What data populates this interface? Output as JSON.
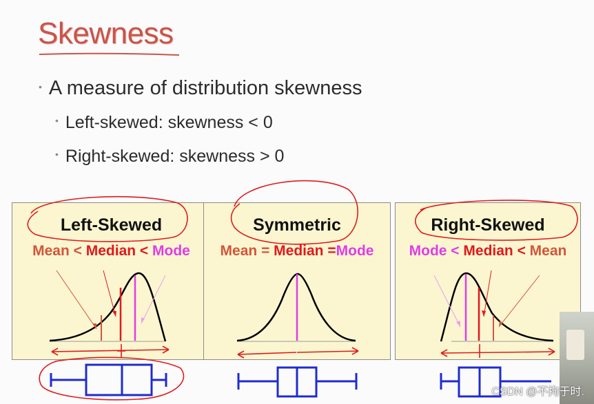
{
  "slide": {
    "title": "Skewness",
    "bullets": [
      "A measure of distribution skewness",
      "Left-skewed: skewness < 0",
      "Right-skewed: skewness > 0"
    ],
    "panels": [
      {
        "title": "Left-Skewed",
        "order": {
          "a": "Mean",
          "s1": " < ",
          "b": "Median",
          "s2": " < ",
          "c": "Mode"
        }
      },
      {
        "title": "Symmetric",
        "order": {
          "a": "Mean",
          "s1": " = ",
          "b": "Median",
          "s2": " =",
          "c": "Mode"
        }
      },
      {
        "title": "Right-Skewed",
        "order": {
          "a": "Mode",
          "s1": " < ",
          "b": "Median",
          "s2": " < ",
          "c": "Mean"
        }
      }
    ]
  },
  "watermark": "CSDN @不拘于时.",
  "colors": {
    "title": "#c8554a",
    "panel_bg": "#fbf6d0",
    "mean": "#d2553c",
    "median": "#e0191d",
    "mode": "#e03ce6",
    "boxplot": "#1f2bd0",
    "annotation": "#e0191d"
  }
}
